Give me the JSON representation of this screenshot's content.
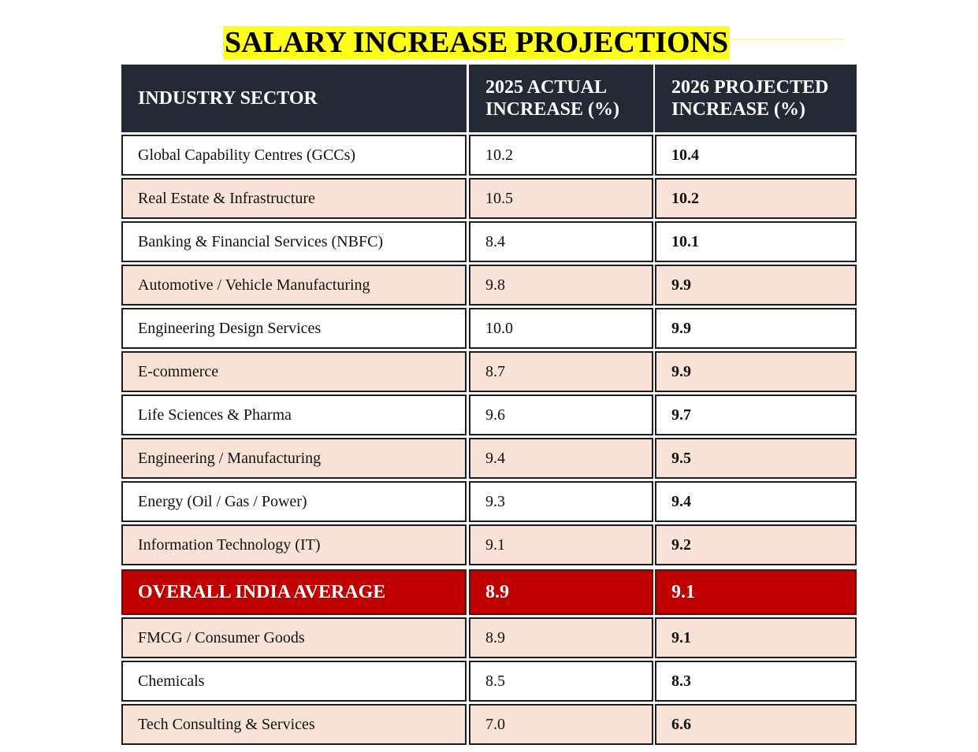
{
  "title": "SALARY INCREASE PROJECTIONS",
  "colors": {
    "title_highlight": "#ffff1a",
    "header_bg": "#232a35",
    "shaded_row_bg": "#f9e3d8",
    "average_row_bg": "#c00000"
  },
  "table": {
    "headers": {
      "sector": "INDUSTRY SECTOR",
      "actual_2025_line1": "2025 ACTUAL",
      "actual_2025_line2": "INCREASE (%)",
      "projected_2026_line1": "2026 PROJECTED",
      "projected_2026_line2": "INCREASE (%)"
    },
    "rows": [
      {
        "sector": "Global Capability Centres (GCCs)",
        "actual_2025": "10.2",
        "projected_2026": "10.4"
      },
      {
        "sector": "Real Estate & Infrastructure",
        "actual_2025": "10.5",
        "projected_2026": "10.2"
      },
      {
        "sector": "Banking & Financial Services (NBFC)",
        "actual_2025": "8.4",
        "projected_2026": "10.1"
      },
      {
        "sector": "Automotive / Vehicle Manufacturing",
        "actual_2025": "9.8",
        "projected_2026": "9.9"
      },
      {
        "sector": "Engineering Design Services",
        "actual_2025": "10.0",
        "projected_2026": "9.9"
      },
      {
        "sector": "E-commerce",
        "actual_2025": "8.7",
        "projected_2026": "9.9"
      },
      {
        "sector": "Life Sciences & Pharma",
        "actual_2025": "9.6",
        "projected_2026": "9.7"
      },
      {
        "sector": "Engineering / Manufacturing",
        "actual_2025": "9.4",
        "projected_2026": "9.5"
      },
      {
        "sector": "Energy (Oil / Gas / Power)",
        "actual_2025": "9.3",
        "projected_2026": "9.4"
      },
      {
        "sector": "Information Technology (IT)",
        "actual_2025": "9.1",
        "projected_2026": "9.2"
      },
      {
        "sector": "OVERALL INDIA AVERAGE",
        "actual_2025": "8.9",
        "projected_2026": "9.1"
      },
      {
        "sector": "FMCG / Consumer Goods",
        "actual_2025": "8.9",
        "projected_2026": "9.1"
      },
      {
        "sector": "Chemicals",
        "actual_2025": "8.5",
        "projected_2026": "8.3"
      },
      {
        "sector": "Tech Consulting & Services",
        "actual_2025": "7.0",
        "projected_2026": "6.6"
      }
    ]
  }
}
